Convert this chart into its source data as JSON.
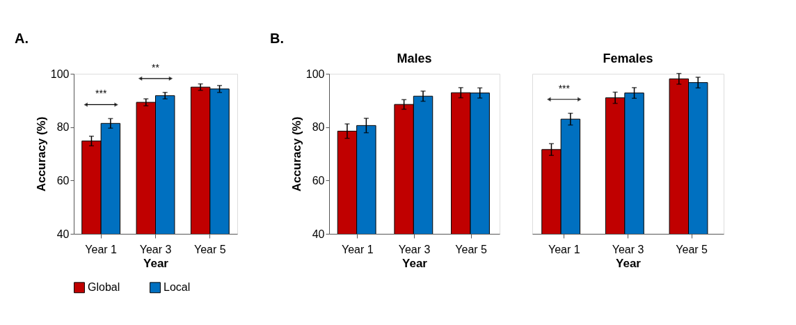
{
  "chart_data": [
    {
      "type": "bar",
      "xlabel": "Year",
      "ylabel": "Accuracy (%)",
      "categories": [
        "Year 1",
        "Year 3",
        "Year 5"
      ],
      "ylim": [
        40,
        100
      ],
      "yticks": [
        40,
        60,
        80,
        100
      ],
      "grid": false,
      "legend": "bottom",
      "series": [
        {
          "name": "Global",
          "color": "#c00000",
          "values": [
            74.8,
            89.3,
            95.0
          ],
          "errors": [
            1.8,
            1.3,
            1.2
          ]
        },
        {
          "name": "Local",
          "color": "#0070c0",
          "values": [
            81.4,
            91.8,
            94.3
          ],
          "errors": [
            1.8,
            1.2,
            1.3
          ]
        }
      ],
      "annotations": [
        "A.",
        "***",
        "**"
      ]
    },
    {
      "type": "bar",
      "title": "Males",
      "xlabel": "Year",
      "ylabel": "Accuracy (%)",
      "categories": [
        "Year 1",
        "Year 3",
        "Year 5"
      ],
      "ylim": [
        40,
        100
      ],
      "yticks": [
        40,
        60,
        80,
        100
      ],
      "grid": false,
      "legend": "bottom",
      "series": [
        {
          "name": "Global",
          "color": "#c00000",
          "values": [
            78.5,
            88.5,
            92.9
          ],
          "errors": [
            2.7,
            1.8,
            1.9
          ]
        },
        {
          "name": "Local",
          "color": "#0070c0",
          "values": [
            80.6,
            91.6,
            92.8
          ],
          "errors": [
            2.7,
            1.9,
            1.9
          ]
        }
      ],
      "annotations": [
        "B."
      ]
    },
    {
      "type": "bar",
      "title": "Females",
      "xlabel": "Year",
      "categories": [
        "Year 1",
        "Year 3",
        "Year 5"
      ],
      "ylim": [
        40,
        100
      ],
      "yticks": [
        40,
        60,
        80,
        100
      ],
      "grid": false,
      "legend": "bottom",
      "tick_labels": "x",
      "series": [
        {
          "name": "Global",
          "color": "#c00000",
          "values": [
            71.6,
            91.0,
            98.1
          ],
          "errors": [
            2.2,
            2.1,
            2.0
          ]
        },
        {
          "name": "Local",
          "color": "#0070c0",
          "values": [
            83.0,
            92.8,
            96.7
          ],
          "errors": [
            2.2,
            2.0,
            2.0
          ]
        }
      ],
      "annotations": [
        "***"
      ]
    }
  ]
}
